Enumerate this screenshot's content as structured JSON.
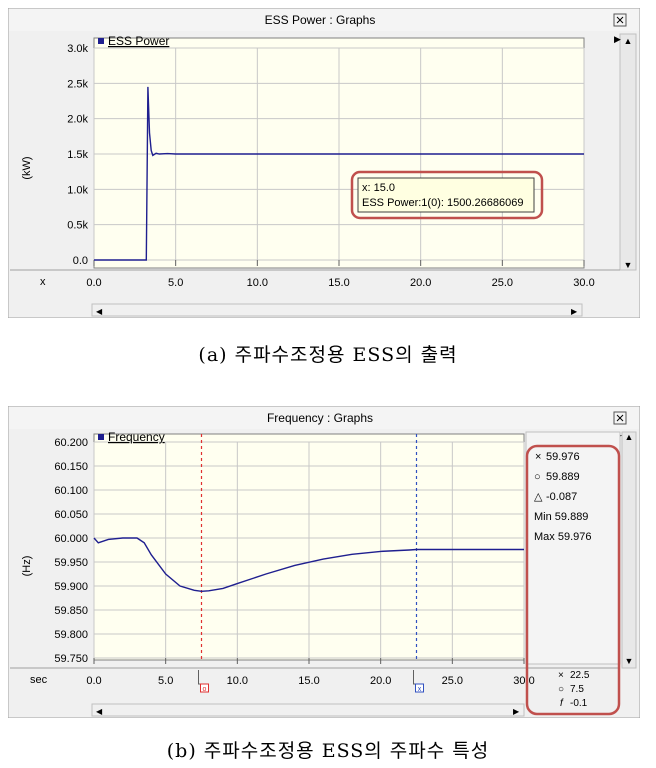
{
  "charts": {
    "power": {
      "window_title": "ESS Power : Graphs",
      "caption": "(a) 주파수조정용 ESS의 출력",
      "tooltip": {
        "line1": "x: 15.0",
        "line2": "ESS Power:1(0): 1500.26686069"
      },
      "colors": {
        "trace": "#1f1f8f",
        "plot_bg": "#fffff0",
        "highlight": "#c0504d"
      }
    },
    "freq": {
      "window_title": "Frequency : Graphs",
      "caption": "(b) 주파수조정용 ESS의 주파수 특성",
      "readout": {
        "cursor_x_value": "59.976",
        "cursor_o_value": "59.889",
        "delta": "-0.087",
        "min": "Min 59.889",
        "max": "Max 59.976",
        "x_cursor": "22.5",
        "o_cursor": "7.5",
        "f_value": "-0.1"
      },
      "colors": {
        "trace": "#1f1f8f",
        "plot_bg": "#fffff0",
        "cursor_o": "#e03030",
        "cursor_x": "#3050c0",
        "highlight": "#c0504d"
      }
    }
  },
  "chart_data": [
    {
      "type": "line",
      "title": "",
      "xlabel": "x",
      "ylabel": "(kW)",
      "legend": "top-left",
      "grid": true,
      "xlim": [
        0,
        30
      ],
      "ylim": [
        0,
        3000
      ],
      "x_ticks": [
        "0.0",
        "5.0",
        "10.0",
        "15.0",
        "20.0",
        "25.0",
        "30.0"
      ],
      "y_ticks": [
        "0.0",
        "0.5k",
        "1.0k",
        "1.5k",
        "2.0k",
        "2.5k",
        "3.0k"
      ],
      "series": [
        {
          "name": "ESS Power",
          "x": [
            0,
            3.2,
            3.25,
            3.3,
            3.4,
            3.5,
            3.6,
            3.8,
            4.0,
            4.5,
            5,
            10,
            15,
            20,
            25,
            30
          ],
          "y": [
            0,
            0,
            1200,
            2450,
            1800,
            1550,
            1480,
            1510,
            1500,
            1505,
            1500,
            1500,
            1500,
            1500,
            1500,
            1500
          ]
        }
      ]
    },
    {
      "type": "line",
      "title": "",
      "xlabel": "sec",
      "ylabel": "(Hz)",
      "legend": "top-left",
      "grid": true,
      "xlim": [
        0,
        30
      ],
      "ylim": [
        59.75,
        60.2
      ],
      "x_ticks": [
        "0.0",
        "5.0",
        "10.0",
        "15.0",
        "20.0",
        "25.0",
        "30.0"
      ],
      "y_ticks": [
        "59.750",
        "59.800",
        "59.850",
        "59.900",
        "59.950",
        "60.000",
        "60.050",
        "60.100",
        "60.150",
        "60.200"
      ],
      "cursors": {
        "o": 7.5,
        "x": 22.5
      },
      "series": [
        {
          "name": "Frequency",
          "x": [
            0,
            0.3,
            1,
            2,
            3,
            3.5,
            4,
            5,
            6,
            7,
            7.5,
            8,
            9,
            10,
            12,
            14,
            16,
            18,
            20,
            22,
            22.5,
            24,
            26,
            28,
            30
          ],
          "y": [
            60.0,
            59.99,
            59.997,
            60.0,
            60.0,
            59.99,
            59.965,
            59.925,
            59.9,
            59.891,
            59.889,
            59.89,
            59.895,
            59.905,
            59.925,
            59.943,
            59.956,
            59.966,
            59.972,
            59.975,
            59.976,
            59.976,
            59.976,
            59.976,
            59.976
          ]
        }
      ]
    }
  ]
}
